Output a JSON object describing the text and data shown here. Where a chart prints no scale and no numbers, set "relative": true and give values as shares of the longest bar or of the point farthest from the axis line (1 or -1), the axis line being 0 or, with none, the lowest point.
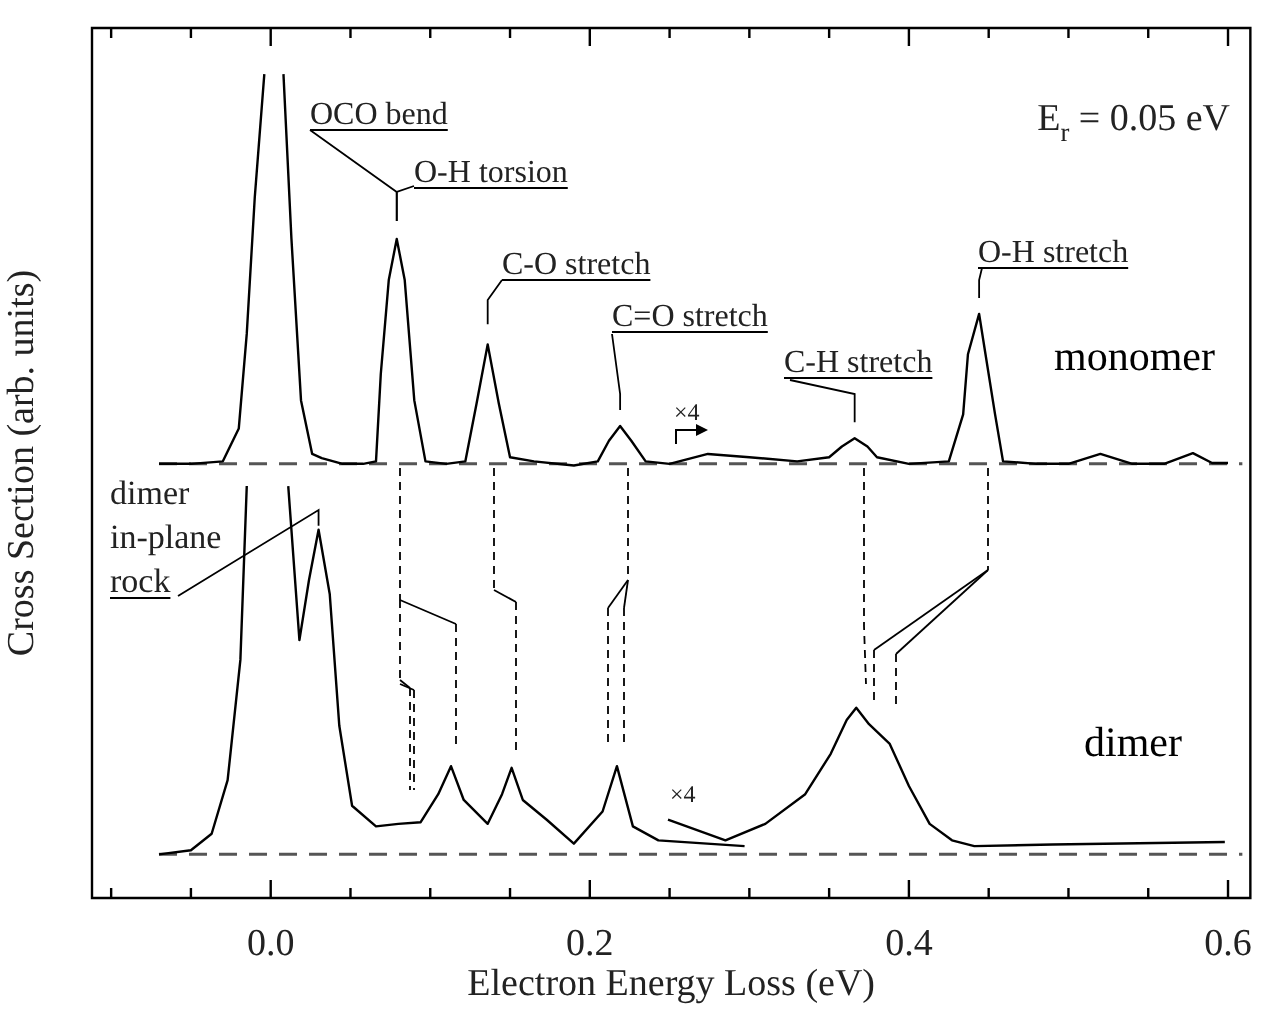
{
  "chart_data": {
    "type": "line",
    "relative": true,
    "xlabel": "Electron Energy Loss (eV)",
    "ylabel": "Cross Section (arb. units)",
    "xlim": [
      -0.112,
      0.614
    ],
    "xticks": [
      {
        "value": -0.1,
        "label": null
      },
      {
        "value": -0.05,
        "label": null
      },
      {
        "value": 0,
        "label": "0.0"
      },
      {
        "value": 0.05,
        "label": null
      },
      {
        "value": 0.1,
        "label": null
      },
      {
        "value": 0.15,
        "label": null
      },
      {
        "value": 0.2,
        "label": "0.2"
      },
      {
        "value": 0.25,
        "label": null
      },
      {
        "value": 0.3,
        "label": null
      },
      {
        "value": 0.35,
        "label": null
      },
      {
        "value": 0.4,
        "label": "0.4"
      },
      {
        "value": 0.45,
        "label": null
      },
      {
        "value": 0.5,
        "label": null
      },
      {
        "value": 0.55,
        "label": null
      },
      {
        "value": 0.6,
        "label": "0.6"
      }
    ],
    "grid": false,
    "legend": false,
    "marker": "none",
    "line_style": "solid",
    "series": [
      {
        "name": "monomer",
        "color": "#000000",
        "x": [
          -0.07,
          -0.05,
          -0.03,
          -0.02,
          -0.015,
          -0.01,
          -0.004,
          0.002,
          0.008,
          0.013,
          0.019,
          0.026,
          0.032,
          0.045,
          0.058,
          0.066,
          0.069,
          0.074,
          0.079,
          0.084,
          0.09,
          0.097,
          0.11,
          0.122,
          0.129,
          0.136,
          0.143,
          0.15,
          0.165,
          0.19,
          0.205,
          0.212,
          0.219,
          0.226,
          0.235,
          0.25,
          0.274,
          0.3,
          0.33,
          0.35,
          0.358,
          0.366,
          0.374,
          0.38,
          0.4,
          0.425,
          0.434,
          0.437,
          0.444,
          0.448,
          0.454,
          0.459,
          0.48,
          0.5,
          0.52,
          0.54,
          0.56,
          0.578,
          0.59,
          0.6
        ],
        "values": [
          0.527,
          0.527,
          0.53,
          0.57,
          0.685,
          0.85,
          1.0,
          null,
          1.0,
          0.8,
          0.604,
          0.539,
          0.534,
          0.527,
          0.527,
          0.53,
          0.636,
          0.75,
          0.8,
          0.75,
          0.604,
          0.53,
          0.527,
          0.53,
          0.6,
          0.672,
          0.6,
          0.535,
          0.53,
          0.525,
          0.53,
          0.555,
          0.573,
          0.555,
          0.53,
          0.527,
          0.539,
          0.535,
          0.53,
          0.535,
          0.548,
          0.558,
          0.548,
          0.535,
          0.527,
          0.53,
          0.587,
          0.66,
          0.709,
          0.66,
          0.587,
          0.53,
          0.527,
          0.527,
          0.539,
          0.527,
          0.527,
          0.54,
          0.528,
          0.528
        ]
      },
      {
        "name": "dimer",
        "color": "#000000",
        "x": [
          -0.07,
          -0.05,
          -0.037,
          -0.027,
          -0.019,
          -0.015,
          -0.002,
          0.011,
          0.018,
          0.024,
          0.03,
          0.037,
          0.043,
          0.051,
          0.066,
          0.08,
          0.094,
          0.105,
          0.113,
          0.121,
          0.136,
          0.145,
          0.151,
          0.158,
          0.173,
          0.19,
          0.208,
          0.217,
          0.227,
          0.243,
          0.297,
          0.27,
          0.249,
          0.285,
          0.31,
          0.335,
          0.351,
          0.361,
          0.367,
          0.375,
          0.388,
          0.4,
          0.413,
          0.427,
          0.441,
          0.49,
          0.598
        ],
        "values": [
          0.053,
          0.058,
          0.078,
          0.143,
          0.289,
          0.5,
          null,
          0.5,
          0.313,
          0.386,
          0.447,
          0.369,
          0.209,
          0.112,
          0.087,
          0.09,
          0.092,
          0.126,
          0.16,
          0.119,
          0.09,
          0.126,
          0.158,
          0.119,
          0.095,
          0.066,
          0.105,
          0.16,
          0.087,
          0.07,
          0.063,
          null,
          0.095,
          0.07,
          0.09,
          0.126,
          0.175,
          0.216,
          0.231,
          0.211,
          0.187,
          0.136,
          0.09,
          0.07,
          0.063,
          0.065,
          0.068
        ]
      }
    ],
    "ref_lines": [
      {
        "axis": "y",
        "value": 0.527,
        "line_style": "dashed",
        "color": "#555555"
      },
      {
        "axis": "y",
        "value": 0.053,
        "line_style": "dashed",
        "color": "#555555"
      }
    ],
    "annotations": [
      {
        "text": "OCO bend",
        "x": 0.079,
        "y": 0.8
      },
      {
        "text": "O-H torsion",
        "x": 0.079,
        "y": 0.8
      },
      {
        "text": "C-O stretch",
        "x": 0.136,
        "y": 0.672
      },
      {
        "text": "C=O stretch",
        "x": 0.219,
        "y": 0.573
      },
      {
        "text": "C-H stretch",
        "x": 0.366,
        "y": 0.558
      },
      {
        "text": "O-H stretch",
        "x": 0.444,
        "y": 0.709
      },
      "×4",
      "×4",
      {
        "text": "dimer\nin-plane\nrock",
        "x": 0.03,
        "y": 0.447
      },
      "E$_{r}$ = 0.05 eV"
    ]
  }
}
